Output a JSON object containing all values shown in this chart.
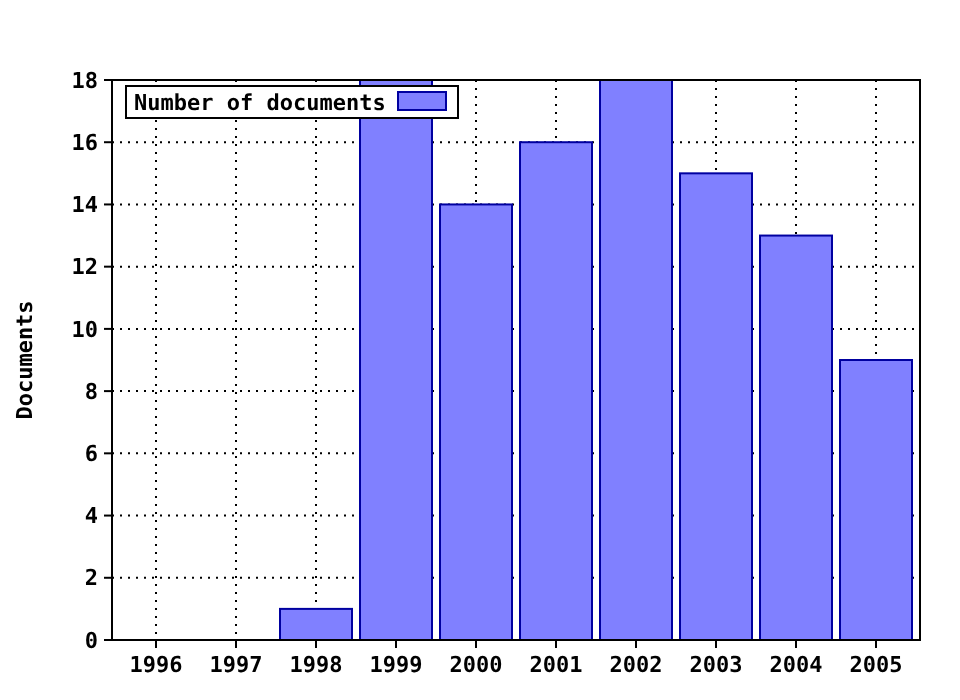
{
  "chart_data": {
    "type": "bar",
    "ylabel": "Documents",
    "categories": [
      "1996",
      "1997",
      "1998",
      "1999",
      "2000",
      "2001",
      "2002",
      "2003",
      "2004",
      "2005"
    ],
    "series": [
      {
        "name": "Number of documents",
        "color": "#8080ff",
        "values": [
          0,
          0,
          1,
          18,
          14,
          16,
          18,
          15,
          13,
          9
        ]
      }
    ],
    "ylim": [
      0,
      18
    ],
    "yticks": [
      0,
      2,
      4,
      6,
      8,
      10,
      12,
      14,
      16,
      18
    ],
    "grid": true,
    "legend": "top left"
  }
}
